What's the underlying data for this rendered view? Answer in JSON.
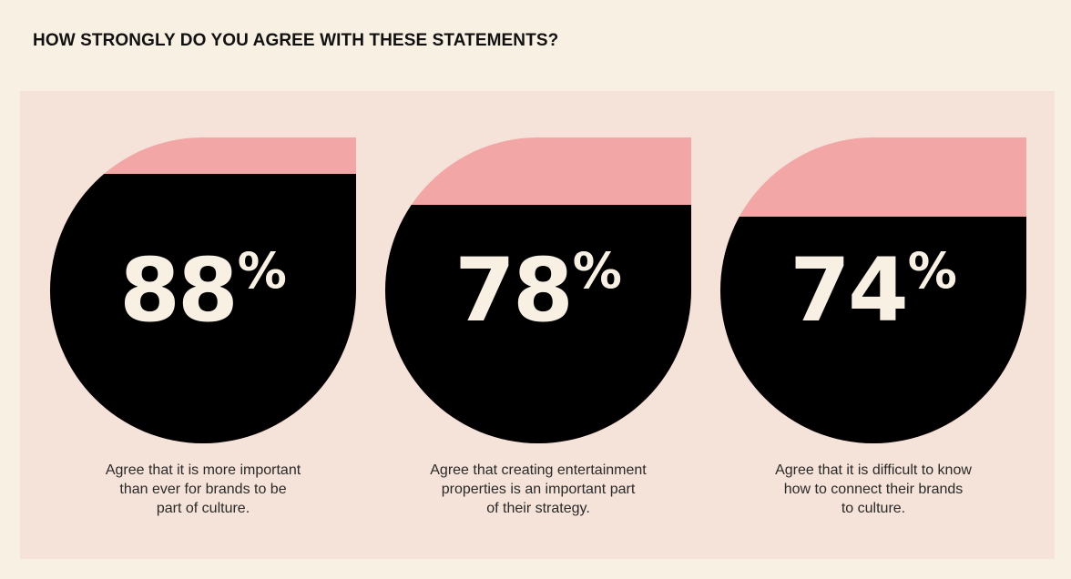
{
  "title": "HOW STRONGLY DO YOU AGREE WITH THESE STATEMENTS?",
  "colors": {
    "background": "#f9f0e4",
    "panel": "#f5e2d8",
    "fill": "#000000",
    "remainder": "#f2a6a5",
    "value_text": "#f9f0e4"
  },
  "chart_data": {
    "type": "bar",
    "title": "HOW STRONGLY DO YOU AGREE WITH THESE STATEMENTS?",
    "unit": "%",
    "ylim": [
      0,
      100
    ],
    "categories": [
      "Agree that it is more important\nthan ever for brands to be\npart of culture.",
      "Agree that creating entertainment\nproperties is an important part\nof their strategy.",
      "Agree that it is difficult to know\nhow to connect their brands\nto culture."
    ],
    "values": [
      88,
      78,
      74
    ]
  },
  "stats": [
    {
      "value": "88",
      "unit": "%",
      "caption": "Agree that it is more important\nthan ever for brands to be\npart of culture."
    },
    {
      "value": "78",
      "unit": "%",
      "caption": "Agree that creating entertainment\nproperties is an important part\nof their strategy."
    },
    {
      "value": "74",
      "unit": "%",
      "caption": "Agree that it is difficult to know\nhow to connect their brands\nto culture."
    }
  ]
}
